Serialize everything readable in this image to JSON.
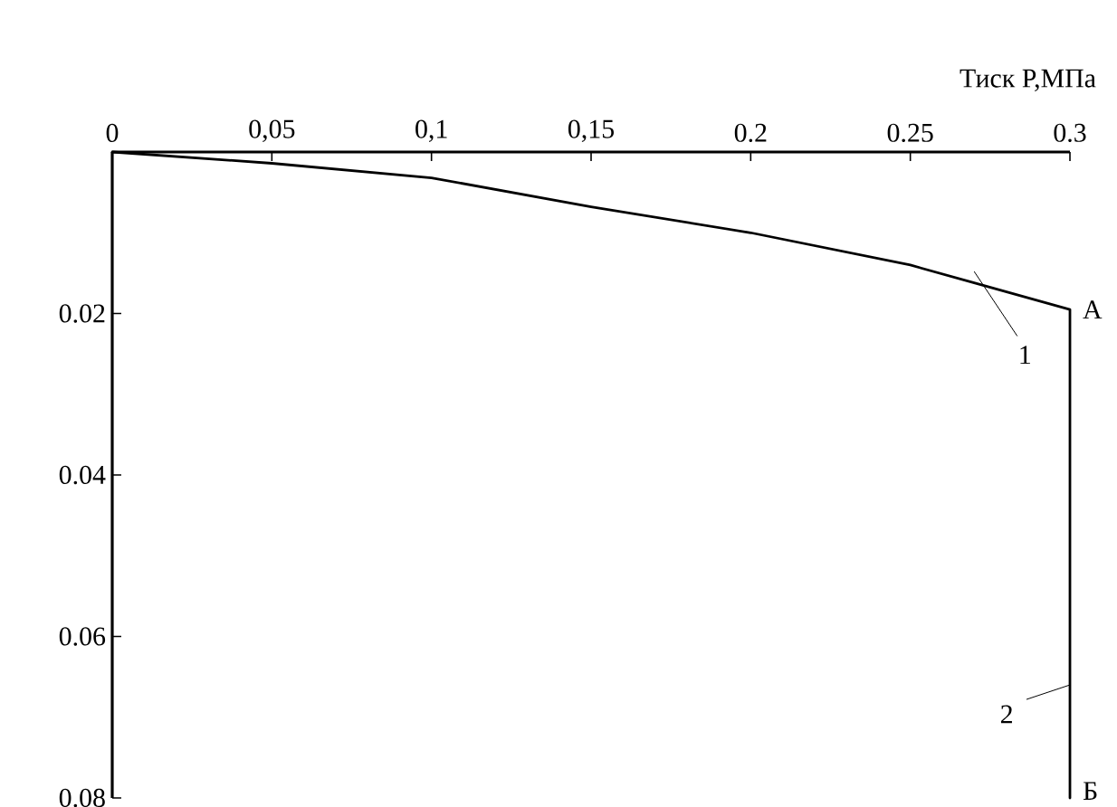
{
  "chart_data": {
    "type": "line",
    "xlabel": "Тиск P,МПа",
    "xlim": [
      0,
      0.3
    ],
    "ylim": [
      0.08,
      0
    ],
    "xticks": [
      0,
      {
        "value": 0.05,
        "label": "0,05"
      },
      {
        "value": 0.1,
        "label": "0,1"
      },
      {
        "value": 0.15,
        "label": "0,15"
      },
      0.2,
      0.25,
      0.3
    ],
    "yticks": [
      0.02,
      0.04,
      0.06,
      0.08
    ],
    "series": [
      {
        "color": "#000000",
        "x": [
          0,
          0.05,
          0.1,
          0.15,
          0.2,
          0.25,
          0.27,
          0.3,
          0.3
        ],
        "values": [
          0,
          0.0014,
          0.0032,
          0.0068,
          0.01,
          0.014,
          0.0162,
          0.0195,
          0.08
        ]
      }
    ],
    "annotations": [
      "1",
      "А",
      {
        "text": "2",
        "x": 0.3,
        "y": 0.066
      },
      "Б"
    ]
  }
}
